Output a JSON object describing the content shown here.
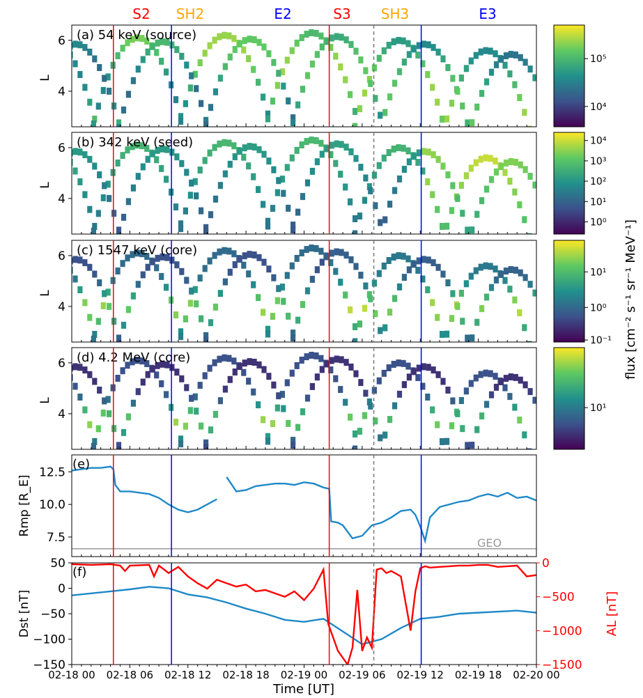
{
  "figure": {
    "time_axis_label": "Time [UT]",
    "time_ticks": [
      "02-18 00",
      "02-18 06",
      "02-18 12",
      "02-18 18",
      "02-19 00",
      "02-19 06",
      "02-19 12",
      "02-19 18",
      "02-20 00"
    ],
    "x_range_hours": [
      0,
      48
    ],
    "events": [
      {
        "label": "S2",
        "hour": 4.3,
        "color": "#ff0000",
        "line_style": "solid"
      },
      {
        "label": "SH2",
        "hour": null,
        "color": "#ffa500",
        "line_style": "none"
      },
      {
        "label": "E2",
        "hour": 10.3,
        "color": "#0000ff",
        "line_style": "solid"
      },
      {
        "label": "S3",
        "hour": 26.6,
        "color": "#ff0000",
        "line_style": "solid"
      },
      {
        "label": "SH3",
        "hour": 31.2,
        "color": "#ffa500",
        "line_style": "dashed"
      },
      {
        "label": "E3",
        "hour": 36.1,
        "color": "#0000ff",
        "line_style": "solid"
      }
    ],
    "colorbar_label": "flux [cm⁻² s⁻¹ sr⁻¹ MeV⁻¹]",
    "colormap": "viridis",
    "colormap_stops": [
      "#440154",
      "#3b528b",
      "#21918c",
      "#5ec962",
      "#fde725"
    ]
  },
  "panels": [
    {
      "id": "a",
      "title": "(a) 54 keV (source)",
      "ylabel": "L",
      "yticks": [
        "4",
        "6"
      ],
      "colorbar_ticks": [
        {
          "label": "10⁴",
          "pos": 0.2
        },
        {
          "label": "10⁵",
          "pos": 0.67
        }
      ]
    },
    {
      "id": "b",
      "title": "(b) 342 keV (seed)",
      "ylabel": "L",
      "yticks": [
        "4",
        "6"
      ],
      "colorbar_ticks": [
        {
          "label": "10⁰",
          "pos": 0.12
        },
        {
          "label": "10¹",
          "pos": 0.32
        },
        {
          "label": "10²",
          "pos": 0.52
        },
        {
          "label": "10³",
          "pos": 0.72
        },
        {
          "label": "10⁴",
          "pos": 0.92
        }
      ]
    },
    {
      "id": "c",
      "title": "(c) 1547 keV (core)",
      "ylabel": "L",
      "yticks": [
        "4",
        "6"
      ],
      "colorbar_ticks": [
        {
          "label": "10⁻¹",
          "pos": 0.02
        },
        {
          "label": "10⁰",
          "pos": 0.34
        },
        {
          "label": "10¹",
          "pos": 0.69
        }
      ]
    },
    {
      "id": "d",
      "title": "(d) 4.2 MeV (core)",
      "ylabel": "L",
      "yticks": [
        "4",
        "6"
      ],
      "colorbar_ticks": [
        {
          "label": "10¹",
          "pos": 0.41
        }
      ]
    }
  ],
  "chart_data": [
    {
      "type": "heatmap",
      "title": "(a) 54 keV (source)",
      "ylabel": "L",
      "ylim": [
        2.6,
        6.6
      ],
      "xlim_hours": [
        0,
        48
      ],
      "orbit_passes": [
        {
          "x": [
            0,
            2.5,
            5
          ],
          "track": "inner"
        },
        {
          "x": [
            5,
            8.1,
            11
          ],
          "track": "outer"
        },
        {
          "x": [
            11,
            17.6,
            20.5
          ],
          "track": "outer"
        }
      ],
      "note": "Van Allen Probes orbit traces; color = electron flux (log)"
    },
    {
      "type": "heatmap",
      "title": "(b) 342 keV (seed)",
      "ylabel": "L",
      "ylim": [
        2.6,
        6.6
      ],
      "xlim_hours": [
        0,
        48
      ]
    },
    {
      "type": "heatmap",
      "title": "(c) 1547 keV (core)",
      "ylabel": "L",
      "ylim": [
        2.6,
        6.6
      ],
      "xlim_hours": [
        0,
        48
      ]
    },
    {
      "type": "heatmap",
      "title": "(d) 4.2 MeV (core)",
      "ylabel": "L",
      "ylim": [
        2.6,
        6.6
      ],
      "xlim_hours": [
        0,
        48
      ]
    },
    {
      "type": "line",
      "title": "(e)",
      "ylabel": "Rmp [R_E]",
      "ylim": [
        6.0,
        13.8
      ],
      "yticks": [
        7.5,
        10.0,
        12.5
      ],
      "reference_line": {
        "label": "GEO",
        "value": 6.6,
        "color": "#999999"
      },
      "series": [
        {
          "color": "#1e88c8",
          "x": [
            0,
            1,
            2,
            3,
            4,
            4.3,
            4.5,
            5,
            6,
            7,
            8,
            9,
            10,
            11,
            12,
            13,
            14,
            15,
            15.5,
            16,
            17,
            18,
            19,
            20,
            21,
            22,
            23,
            24,
            25,
            26,
            26.6,
            26.8,
            27.5,
            28,
            29,
            30,
            31,
            32,
            33,
            34,
            35,
            35.5,
            36,
            36.5,
            37,
            38,
            39,
            40,
            41,
            42,
            43,
            44,
            45,
            46,
            47,
            48
          ],
          "y": [
            12.6,
            12.7,
            12.8,
            12.8,
            12.9,
            12.7,
            11.5,
            11.0,
            11.0,
            10.9,
            10.8,
            10.5,
            10.0,
            9.6,
            9.4,
            9.6,
            10.0,
            10.4,
            null,
            12.1,
            11.0,
            11.1,
            11.4,
            11.5,
            11.6,
            11.6,
            11.5,
            11.7,
            11.6,
            11.3,
            11.2,
            8.7,
            8.6,
            8.4,
            7.4,
            7.6,
            8.4,
            8.6,
            9.0,
            9.5,
            9.6,
            9.2,
            8.3,
            7.2,
            9.0,
            9.8,
            10.0,
            10.2,
            10.3,
            10.6,
            10.8,
            10.6,
            10.9,
            10.5,
            10.6,
            10.3
          ]
        }
      ]
    },
    {
      "type": "line",
      "title": "(f)",
      "ylabel": "Dst [nT]",
      "ylabel_right": "AL [nT]",
      "ylim": [
        -150,
        50
      ],
      "yticks": [
        50,
        0,
        -50,
        -100,
        -150
      ],
      "ylim_right": [
        -1500,
        0
      ],
      "yticks_right": [
        0,
        -500,
        -1000,
        -1500
      ],
      "series": [
        {
          "name": "Dst",
          "axis": "left",
          "color": "#1e88c8",
          "x": [
            0,
            2,
            4,
            6,
            8,
            10,
            12,
            14,
            16,
            18,
            20,
            22,
            24,
            26,
            28,
            30,
            32,
            34,
            36,
            38,
            40,
            42,
            44,
            46,
            48
          ],
          "y": [
            -14,
            -10,
            -6,
            -2,
            3,
            0,
            -12,
            -18,
            -28,
            -40,
            -50,
            -62,
            -66,
            -60,
            -85,
            -110,
            -100,
            -78,
            -60,
            -56,
            -50,
            -48,
            -46,
            -44,
            -48
          ]
        },
        {
          "name": "AL",
          "axis": "right",
          "color": "#ff0000",
          "x": [
            0,
            2,
            4,
            5,
            5.5,
            6,
            8,
            8.5,
            9,
            10,
            11,
            12,
            13,
            14,
            15,
            16,
            17,
            18,
            19,
            20,
            21,
            22,
            23,
            24,
            25,
            26,
            26.5,
            27,
            27.5,
            28,
            28.5,
            29,
            29.5,
            30,
            30.5,
            31,
            31.5,
            32,
            32.5,
            33,
            34,
            35,
            35.5,
            36,
            36.5,
            37,
            38,
            39,
            40,
            41,
            42,
            43,
            44,
            45,
            46,
            47,
            48
          ],
          "y": [
            -20,
            -30,
            -20,
            -40,
            -120,
            -40,
            -30,
            -200,
            -40,
            -150,
            -60,
            -200,
            -300,
            -380,
            -250,
            -300,
            -350,
            -320,
            -420,
            -400,
            -450,
            -500,
            -420,
            -550,
            -380,
            -100,
            -900,
            -1100,
            -1300,
            -1400,
            -1500,
            -1250,
            -400,
            -1300,
            -1100,
            -1250,
            -100,
            -80,
            -150,
            -120,
            -200,
            -1000,
            -420,
            -80,
            -50,
            -70,
            -60,
            -50,
            -40,
            -40,
            -30,
            -30,
            -60,
            -50,
            -40,
            -200,
            -180
          ]
        }
      ]
    }
  ]
}
